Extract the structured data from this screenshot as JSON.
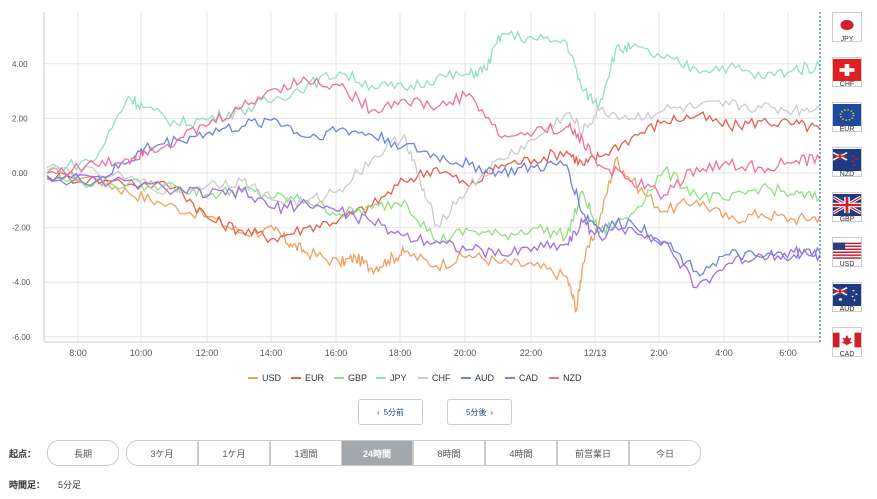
{
  "chart_data": {
    "type": "line",
    "xlabel": "",
    "ylabel": "",
    "ylim": [
      -6,
      6
    ],
    "y_ticks": [
      "4.00",
      "2.00",
      "0.00",
      "-2.00",
      "-4.00",
      "-6.00"
    ],
    "x_ticks": [
      "8:00",
      "10:00",
      "12:00",
      "14:00",
      "16:00",
      "18:00",
      "20:00",
      "22:00",
      "12/13",
      "2:00",
      "4:00",
      "6:00"
    ],
    "x_hours": [
      0,
      23.8
    ],
    "series": [
      {
        "name": "USD",
        "color": "#f0a060",
        "points": [
          [
            0,
            0
          ],
          [
            1.5,
            -0.2
          ],
          [
            2.5,
            -0.7
          ],
          [
            3.5,
            -1.1
          ],
          [
            5,
            -1.6
          ],
          [
            6,
            -2.2
          ],
          [
            7,
            -2.1
          ],
          [
            7.5,
            -2.6
          ],
          [
            8,
            -2.9
          ],
          [
            9,
            -3.3
          ],
          [
            9.5,
            -3.1
          ],
          [
            10,
            -3.5
          ],
          [
            10.5,
            -3.2
          ],
          [
            11,
            -2.9
          ],
          [
            12,
            -3.4
          ],
          [
            13,
            -3.0
          ],
          [
            14,
            -3.3
          ],
          [
            15,
            -3.4
          ],
          [
            16,
            -3.8
          ],
          [
            16.3,
            -5.0
          ],
          [
            16.5,
            -3.3
          ],
          [
            17,
            -1.8
          ],
          [
            17.5,
            0.5
          ],
          [
            18,
            -0.3
          ],
          [
            19,
            -1.4
          ],
          [
            20,
            -1.0
          ],
          [
            21,
            -1.7
          ],
          [
            22,
            -1.5
          ],
          [
            23,
            -1.7
          ],
          [
            23.8,
            -1.6
          ]
        ]
      },
      {
        "name": "EUR",
        "color": "#e06050",
        "points": [
          [
            0,
            -0.1
          ],
          [
            2,
            -0.3
          ],
          [
            4,
            -0.5
          ],
          [
            5,
            -1.7
          ],
          [
            6,
            -2.1
          ],
          [
            7,
            -2.4
          ],
          [
            8,
            -2.0
          ],
          [
            9,
            -1.7
          ],
          [
            10,
            -1.2
          ],
          [
            11,
            -0.3
          ],
          [
            12,
            0.2
          ],
          [
            13,
            -0.5
          ],
          [
            14,
            0.3
          ],
          [
            15,
            0.5
          ],
          [
            16,
            0.8
          ],
          [
            16.5,
            0.3
          ],
          [
            17,
            0.6
          ],
          [
            18,
            1.3
          ],
          [
            19,
            1.9
          ],
          [
            20,
            2.1
          ],
          [
            21,
            1.7
          ],
          [
            22,
            1.9
          ],
          [
            23,
            1.8
          ],
          [
            23.8,
            1.6
          ]
        ]
      },
      {
        "name": "GBP",
        "color": "#90e080",
        "points": [
          [
            0,
            -0.2
          ],
          [
            2,
            -0.4
          ],
          [
            4,
            -0.5
          ],
          [
            5,
            -0.8
          ],
          [
            6,
            -0.6
          ],
          [
            7,
            -0.9
          ],
          [
            8,
            -1.0
          ],
          [
            9,
            -1.5
          ],
          [
            10,
            -1.3
          ],
          [
            11,
            -1.0
          ],
          [
            12,
            -2.5
          ],
          [
            13,
            -2.1
          ],
          [
            14,
            -2.3
          ],
          [
            15,
            -2.0
          ],
          [
            16,
            -2.3
          ],
          [
            16.5,
            -0.7
          ],
          [
            17,
            -2.2
          ],
          [
            18,
            -1.5
          ],
          [
            19,
            0.1
          ],
          [
            20,
            -0.8
          ],
          [
            21,
            -1.0
          ],
          [
            22,
            -0.5
          ],
          [
            23,
            -0.8
          ],
          [
            23.8,
            -0.9
          ]
        ]
      },
      {
        "name": "JPY",
        "color": "#90e0c8",
        "points": [
          [
            0,
            0.1
          ],
          [
            1.5,
            0.5
          ],
          [
            2.5,
            2.8
          ],
          [
            3,
            2.4
          ],
          [
            4,
            1.8
          ],
          [
            5,
            2.0
          ],
          [
            6,
            2.3
          ],
          [
            7,
            2.7
          ],
          [
            8,
            3.2
          ],
          [
            9,
            3.7
          ],
          [
            10,
            3.2
          ],
          [
            11,
            3.1
          ],
          [
            12,
            3.5
          ],
          [
            13,
            3.6
          ],
          [
            13.5,
            3.8
          ],
          [
            14,
            5.1
          ],
          [
            15,
            4.9
          ],
          [
            16,
            4.8
          ],
          [
            16.5,
            3.0
          ],
          [
            17,
            2.5
          ],
          [
            17.5,
            4.5
          ],
          [
            18,
            4.6
          ],
          [
            19,
            4.2
          ],
          [
            20,
            3.8
          ],
          [
            21,
            3.9
          ],
          [
            22,
            3.5
          ],
          [
            23,
            3.8
          ],
          [
            23.8,
            3.9
          ]
        ]
      },
      {
        "name": "CHF",
        "color": "#cccccc",
        "points": [
          [
            0,
            0.2
          ],
          [
            2,
            -0.1
          ],
          [
            4,
            -0.7
          ],
          [
            5,
            -0.4
          ],
          [
            6,
            -0.3
          ],
          [
            7,
            -1.0
          ],
          [
            8,
            -1.1
          ],
          [
            9,
            -0.6
          ],
          [
            10,
            0.5
          ],
          [
            11,
            1.4
          ],
          [
            11.5,
            -0.4
          ],
          [
            12,
            -1.9
          ],
          [
            13,
            -0.5
          ],
          [
            14,
            0.5
          ],
          [
            15,
            1.2
          ],
          [
            16,
            2.2
          ],
          [
            16.5,
            1.5
          ],
          [
            17,
            2.3
          ],
          [
            18,
            2.0
          ],
          [
            19,
            2.3
          ],
          [
            20,
            2.4
          ],
          [
            21,
            2.5
          ],
          [
            22,
            2.4
          ],
          [
            23,
            2.3
          ],
          [
            23.8,
            2.4
          ]
        ]
      },
      {
        "name": "AUD",
        "color": "#7080e0",
        "points": [
          [
            0,
            -0.1
          ],
          [
            1.5,
            -0.3
          ],
          [
            2.5,
            0.4
          ],
          [
            3,
            0.9
          ],
          [
            4,
            1.2
          ],
          [
            5,
            1.5
          ],
          [
            6,
            1.7
          ],
          [
            7,
            2.0
          ],
          [
            8,
            1.3
          ],
          [
            9,
            1.6
          ],
          [
            10,
            1.4
          ],
          [
            11,
            1.0
          ],
          [
            12,
            0.6
          ],
          [
            13,
            0.3
          ],
          [
            14,
            0.0
          ],
          [
            15,
            0.2
          ],
          [
            16,
            0.3
          ],
          [
            16.5,
            -1.5
          ],
          [
            17,
            -2.0
          ],
          [
            18,
            -1.8
          ],
          [
            19,
            -2.5
          ],
          [
            20,
            -3.6
          ],
          [
            21,
            -3.0
          ],
          [
            22,
            -3.1
          ],
          [
            23,
            -3.0
          ],
          [
            23.8,
            -2.9
          ]
        ]
      },
      {
        "name": "CAD",
        "color": "#a070e0",
        "points": [
          [
            0,
            -0.2
          ],
          [
            2,
            -0.3
          ],
          [
            4,
            -0.6
          ],
          [
            5,
            -0.8
          ],
          [
            6,
            -0.7
          ],
          [
            7,
            -1.3
          ],
          [
            8,
            -1.1
          ],
          [
            9,
            -1.4
          ],
          [
            10,
            -1.8
          ],
          [
            11,
            -2.3
          ],
          [
            12,
            -2.5
          ],
          [
            13,
            -2.8
          ],
          [
            14,
            -3.0
          ],
          [
            15,
            -2.7
          ],
          [
            16,
            -2.6
          ],
          [
            16.5,
            -1.8
          ],
          [
            17,
            -2.3
          ],
          [
            18,
            -2.0
          ],
          [
            19,
            -2.5
          ],
          [
            20,
            -4.2
          ],
          [
            21,
            -3.3
          ],
          [
            22,
            -3.0
          ],
          [
            23,
            -2.9
          ],
          [
            23.8,
            -3.0
          ]
        ]
      },
      {
        "name": "NZD",
        "color": "#f070a0",
        "points": [
          [
            0,
            0.0
          ],
          [
            1.5,
            0.3
          ],
          [
            2.5,
            0.5
          ],
          [
            3,
            0.8
          ],
          [
            4,
            1.2
          ],
          [
            5,
            1.8
          ],
          [
            6,
            2.4
          ],
          [
            7,
            3.1
          ],
          [
            8,
            3.4
          ],
          [
            9,
            3.2
          ],
          [
            10,
            2.3
          ],
          [
            11,
            2.7
          ],
          [
            12,
            2.4
          ],
          [
            13,
            2.9
          ],
          [
            14,
            1.3
          ],
          [
            15,
            1.5
          ],
          [
            16,
            1.7
          ],
          [
            16.5,
            1.2
          ],
          [
            17,
            0.3
          ],
          [
            18,
            -0.3
          ],
          [
            19,
            -0.8
          ],
          [
            20,
            0.2
          ],
          [
            21,
            0.3
          ],
          [
            22,
            0.2
          ],
          [
            23,
            0.4
          ],
          [
            23.8,
            0.5
          ]
        ]
      }
    ],
    "grid": true,
    "legend": "bottom"
  },
  "flags": [
    {
      "code": "JPY",
      "icon": "japan-flag-icon"
    },
    {
      "code": "CHF",
      "icon": "switzerland-flag-icon"
    },
    {
      "code": "EUR",
      "icon": "eu-flag-icon"
    },
    {
      "code": "NZD",
      "icon": "new-zealand-flag-icon"
    },
    {
      "code": "GBP",
      "icon": "uk-flag-icon"
    },
    {
      "code": "USD",
      "icon": "us-flag-icon"
    },
    {
      "code": "AUD",
      "icon": "australia-flag-icon"
    },
    {
      "code": "CAD",
      "icon": "canada-flag-icon"
    }
  ],
  "nav": {
    "prev": "5分前",
    "next": "5分後"
  },
  "start_point": {
    "label": "起点：",
    "long": "長期",
    "ranges": [
      "3ケ月",
      "1ケ月",
      "1週間",
      "24時間",
      "8時間",
      "4時間",
      "前営業日",
      "今日"
    ],
    "active": "24時間"
  },
  "interval": {
    "label": "時間足：",
    "value": "5分足"
  }
}
